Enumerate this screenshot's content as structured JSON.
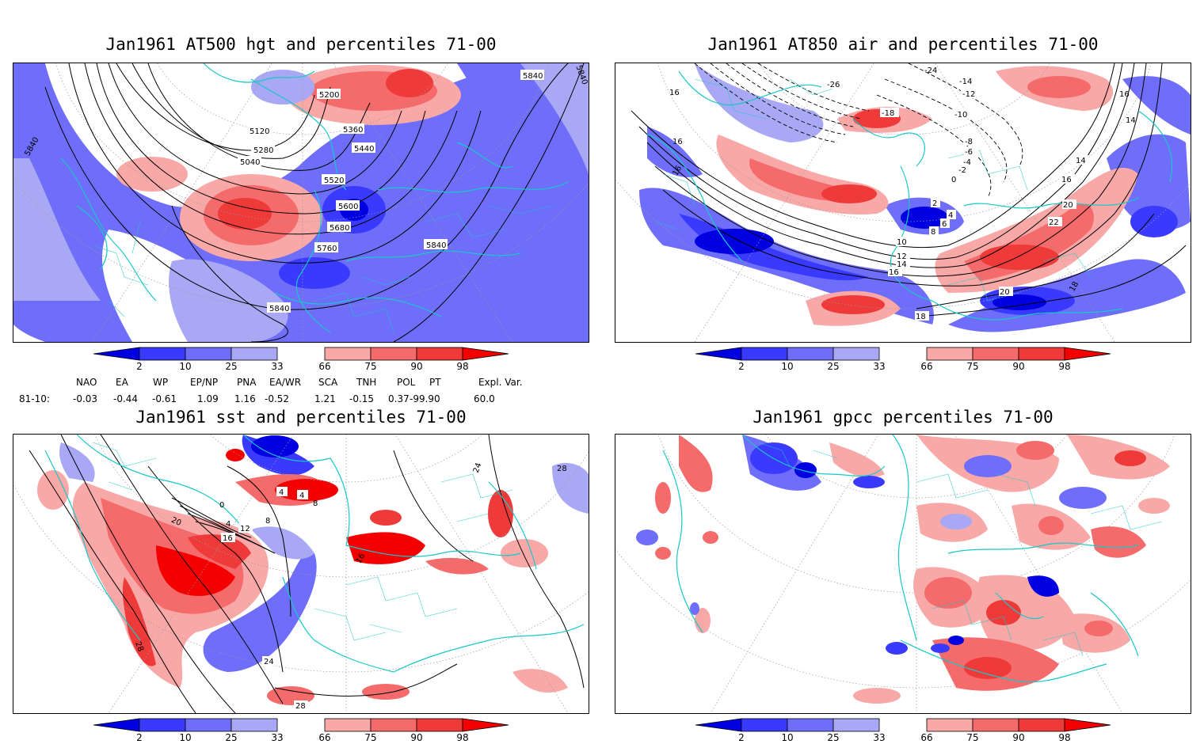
{
  "panels": [
    {
      "id": "p1",
      "title": "Jan1961 AT500 hgt and percentiles 71-00",
      "contour_labels": [
        "5040",
        "5200",
        "5120",
        "5360",
        "5280",
        "5440",
        "5520",
        "5600",
        "5680",
        "5760",
        "5840",
        "5840",
        "5840",
        "5840",
        "5840"
      ]
    },
    {
      "id": "p2",
      "title": "Jan1961 AT850 air and percentiles 71-00",
      "contour_labels": [
        "16",
        "16",
        "16",
        "-26",
        "-24",
        "-14",
        "-12",
        "-10",
        "-18",
        "-8",
        "-6",
        "-4",
        "-2",
        "0",
        "2",
        "4",
        "6",
        "8",
        "10",
        "12",
        "14",
        "16",
        "16",
        "18",
        "18",
        "20",
        "20",
        "22",
        "14",
        "14",
        "16"
      ]
    },
    {
      "id": "p3",
      "title": "Jan1961 sst and percentiles 71-00",
      "contour_labels": [
        "20",
        "16",
        "12",
        "8",
        "4",
        "0",
        "24",
        "28",
        "28",
        "28",
        "24",
        "4",
        "4",
        "8",
        "16"
      ]
    },
    {
      "id": "p4",
      "title": "Jan1961 gpcc percentiles 71-00",
      "contour_labels": []
    }
  ],
  "colorbar": {
    "labels": [
      "2",
      "10",
      "25",
      "33",
      "66",
      "75",
      "90",
      "98"
    ],
    "colors": {
      "below_2": "#0000e0",
      "b2_10": "#3a3aff",
      "b10_25": "#6e6efa",
      "b25_33": "#a8a8f5",
      "neutral": "#ffffff",
      "a66_75": "#f9a8a8",
      "a75_90": "#f56a6a",
      "a90_98": "#ef3a3a",
      "above_98": "#f50000"
    }
  },
  "teleconnection": {
    "headers": [
      "NAO",
      "EA",
      "WP",
      "EP/NP",
      "PNA",
      "EA/WR",
      "SCA",
      "TNH",
      "POL",
      "PT",
      "Expl. Var."
    ],
    "row_label": "81-10:",
    "values": [
      "-0.03",
      "-0.44",
      "-0.61",
      "1.09",
      "1.16",
      "-0.52",
      "1.21",
      "-0.15",
      "0.37",
      "-99.90",
      "60.0"
    ]
  },
  "map_colors": {
    "coast": "#18c8c8",
    "contour": "#000000",
    "grid": "#9a9a9a"
  }
}
